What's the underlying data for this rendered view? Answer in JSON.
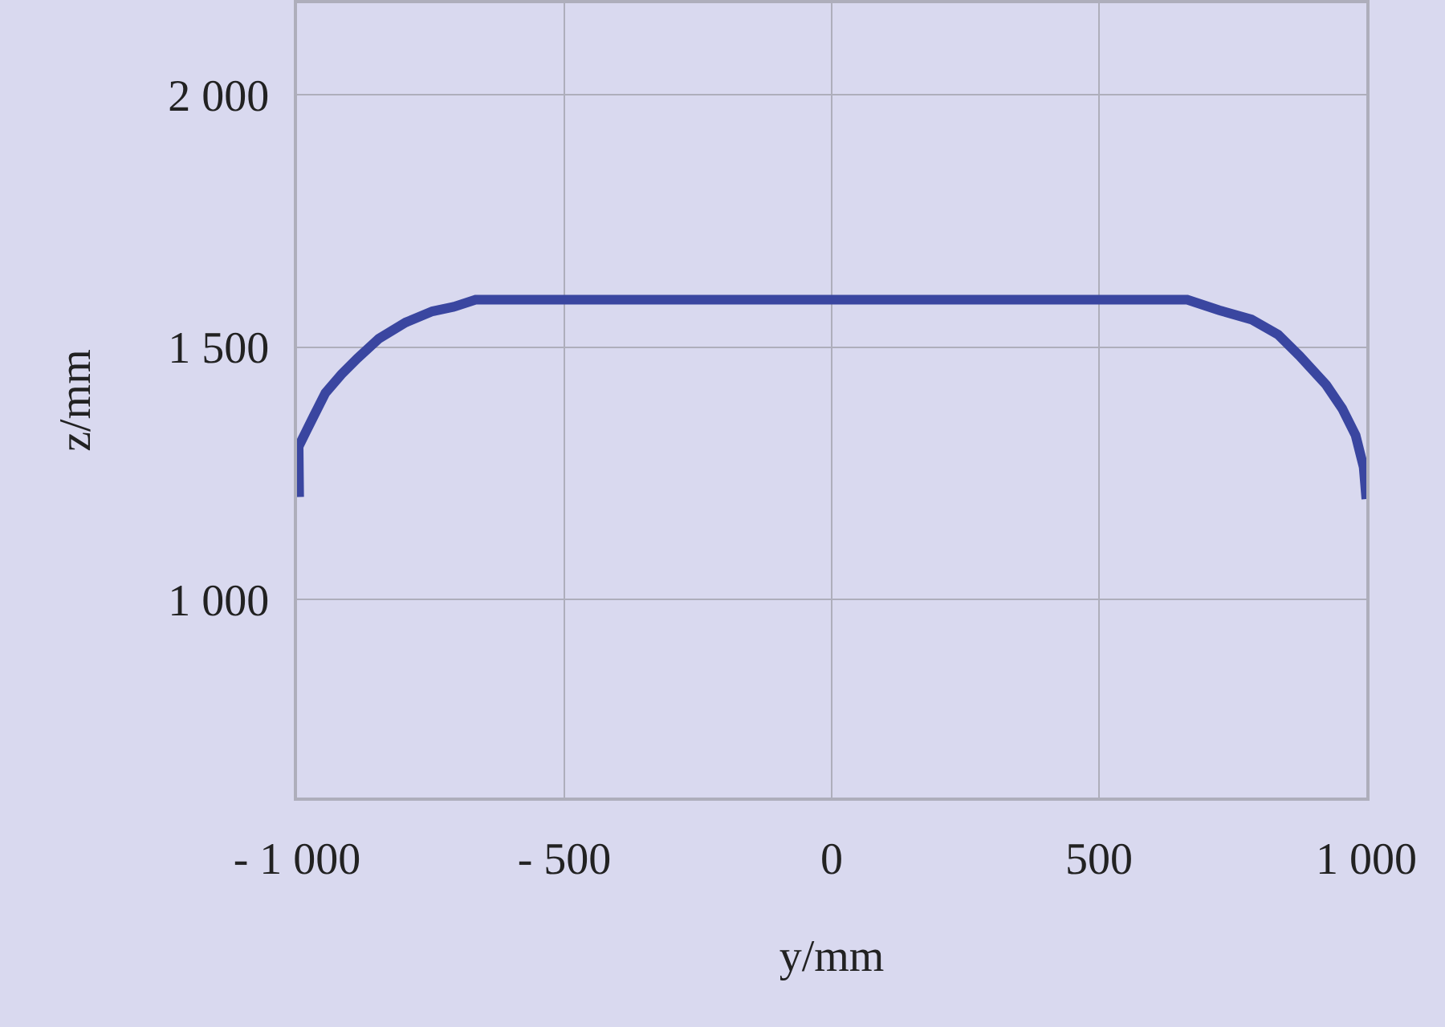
{
  "chart_data": {
    "type": "line",
    "xlabel": "y/mm",
    "ylabel": "z/mm",
    "x": [
      -996,
      -997,
      -982,
      -967,
      -947,
      -917,
      -887,
      -847,
      -797,
      -747,
      -707,
      -666,
      665,
      725,
      785,
      835,
      875,
      925,
      955,
      980,
      995,
      1000
    ],
    "series": [
      {
        "color": "#3a46a0",
        "values": [
          1203,
          1303,
          1335,
          1367,
          1409,
          1446,
          1478,
          1517,
          1549,
          1571,
          1580,
          1594,
          1594,
          1573,
          1555,
          1525,
          1483,
          1425,
          1378,
          1325,
          1262,
          1199
        ]
      }
    ],
    "xlim": [
      -1000,
      1000
    ],
    "ylim": [
      607,
      2182
    ],
    "xticks": [
      {
        "value": -1000,
        "label": "- 1 000"
      },
      {
        "value": -500,
        "label": "- 500"
      },
      0,
      500,
      {
        "value": 1000,
        "label": "1 000"
      }
    ],
    "yticks": [
      {
        "value": 1000,
        "label": "1 000"
      },
      {
        "value": 1500,
        "label": "1 500"
      },
      {
        "value": 2000,
        "label": "2 000"
      }
    ],
    "grid": true,
    "line_style": "solid"
  }
}
